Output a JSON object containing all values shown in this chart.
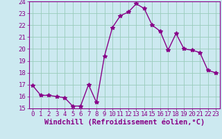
{
  "x": [
    0,
    1,
    2,
    3,
    4,
    5,
    6,
    7,
    8,
    9,
    10,
    11,
    12,
    13,
    14,
    15,
    16,
    17,
    18,
    19,
    20,
    21,
    22,
    23
  ],
  "y": [
    16.9,
    16.1,
    16.1,
    16.0,
    15.9,
    15.2,
    15.2,
    17.0,
    15.5,
    19.4,
    21.8,
    22.8,
    23.1,
    23.8,
    23.4,
    22.0,
    21.5,
    19.9,
    21.3,
    20.0,
    19.9,
    19.7,
    18.2,
    18.0
  ],
  "ylim": [
    15,
    24
  ],
  "xlim": [
    -0.5,
    23.5
  ],
  "yticks": [
    15,
    16,
    17,
    18,
    19,
    20,
    21,
    22,
    23,
    24
  ],
  "xticks": [
    0,
    1,
    2,
    3,
    4,
    5,
    6,
    7,
    8,
    9,
    10,
    11,
    12,
    13,
    14,
    15,
    16,
    17,
    18,
    19,
    20,
    21,
    22,
    23
  ],
  "xlabel": "Windchill (Refroidissement éolien,°C)",
  "line_color": "#880088",
  "marker": "*",
  "marker_size": 4,
  "bg_color": "#cce9f0",
  "grid_color": "#99ccbb",
  "tick_fontsize": 6.5,
  "xlabel_fontsize": 7.5
}
